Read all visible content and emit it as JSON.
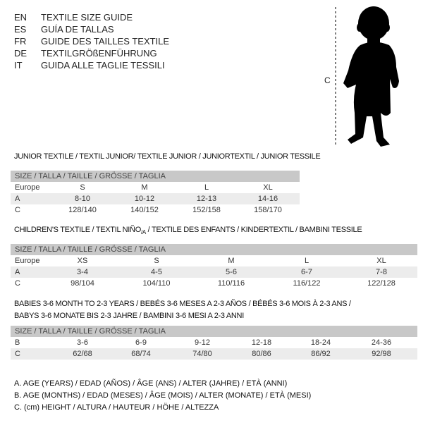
{
  "languages": [
    {
      "code": "EN",
      "title": "TEXTILE SIZE GUIDE"
    },
    {
      "code": "ES",
      "title": "GUÍA DE TALLAS"
    },
    {
      "code": "FR",
      "title": "GUIDE DES TAILLES TEXTILE"
    },
    {
      "code": "DE",
      "title": "TEXTILGRÖßENFÜHRUNG"
    },
    {
      "code": "IT",
      "title": "GUIDA ALLE TAGLIE TESSILI"
    }
  ],
  "figure": {
    "measure_label": "C",
    "icon": "child-silhouette-icon"
  },
  "size_header": "SIZE / TALLA / TAILLE / GRÖSSE / TAGLIA",
  "junior": {
    "title": "JUNIOR TEXTILE / TEXTIL JUNIOR/ TEXTILE JUNIOR / JUNIORTEXTIL / JUNIOR TESSILE",
    "rows": [
      {
        "label": "Europe",
        "values": [
          "S",
          "M",
          "L",
          "XL"
        ]
      },
      {
        "label": "A",
        "values": [
          "8-10",
          "10-12",
          "12-13",
          "14-16"
        ]
      },
      {
        "label": "C",
        "values": [
          "128/140",
          "140/152",
          "152/158",
          "158/170"
        ]
      }
    ]
  },
  "children": {
    "title": "CHILDREN'S TEXTILE / TEXTIL NIÑO",
    "title_sub": "/A",
    "title_rest": " / TEXTILE DES ENFANTS / KINDERTEXTIL / BAMBINI TESSILE",
    "rows": [
      {
        "label": "Europe",
        "values": [
          "XS",
          "S",
          "M",
          "L",
          "XL"
        ]
      },
      {
        "label": "A",
        "values": [
          "3-4",
          "4-5",
          "5-6",
          "6-7",
          "7-8"
        ]
      },
      {
        "label": "C",
        "values": [
          "98/104",
          "104/110",
          "110/116",
          "116/122",
          "122/128"
        ]
      }
    ]
  },
  "babies": {
    "title_line1": "BABIES 3-6 MONTH TO 2-3 YEARS / BEBÉS 3-6 MESES A 2-3 AÑOS / BÉBÉS 3-6 MOIS À 2-3 ANS /",
    "title_line2": "BABYS 3-6 MONATE BIS 2-3 JAHRE / BAMBINI 3-6 MESI A 2-3 ANNI",
    "rows": [
      {
        "label": "B",
        "values": [
          "3-6",
          "6-9",
          "9-12",
          "12-18",
          "18-24",
          "24-36"
        ]
      },
      {
        "label": "C",
        "values": [
          "62/68",
          "68/74",
          "74/80",
          "80/86",
          "86/92",
          "92/98"
        ]
      }
    ]
  },
  "legend": [
    "A. AGE (YEARS) / EDAD (AÑOS) / ÂGE (ANS) / ALTER (JAHRE) / ETÀ (ANNI)",
    "B. AGE (MONTHS) / EDAD (MESES) / ÂGE (MOIS) / ALTER (MONATE) / ETÀ (MESI)",
    "C. (cm) HEIGHT / ALTURA / HAUTEUR / HÖHE / ALTEZZA"
  ]
}
